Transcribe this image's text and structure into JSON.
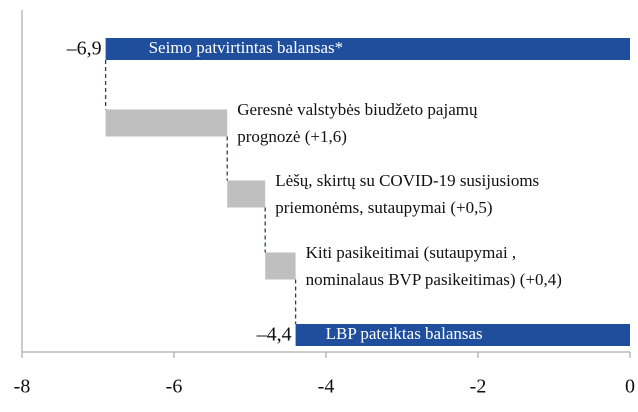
{
  "chart_data": {
    "type": "waterfall",
    "categories": [
      [
        "Seimo patvirtintas balansas*"
      ],
      [
        "Geresnė valstybės biudžeto pajamų",
        "prognozė (+1,6)"
      ],
      [
        "Lėšų, skirtų su COVID-19 susijusioms",
        "priemonėms, sutaupymai (+0,5)"
      ],
      [
        "Kiti pasikeitimai (sutaupymai ,",
        "nominalaus BVP pasikeitimas) (+0,4)"
      ],
      [
        "LBP pateiktas balansas"
      ]
    ],
    "values": [
      -6.9,
      1.6,
      0.5,
      0.4,
      -4.4
    ],
    "value_labels": [
      "–6,9",
      null,
      null,
      null,
      "–4,4"
    ],
    "colors": [
      "#1f4e9c",
      "#bfbfbf",
      "#bfbfbf",
      "#bfbfbf",
      "#1f4e9c"
    ],
    "xlim": [
      -8,
      0
    ],
    "xticks": [
      -8,
      -6,
      -4,
      -2,
      0
    ]
  }
}
